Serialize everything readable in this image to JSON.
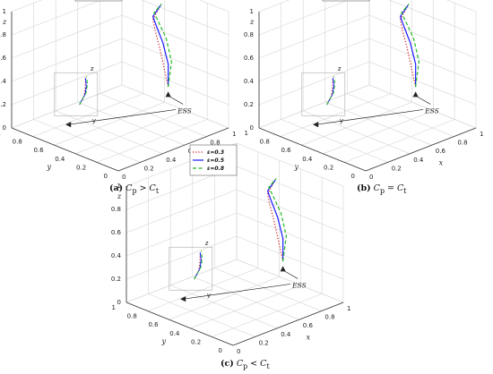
{
  "chart_data": [
    {
      "type": "line3d",
      "caption_label": "(a)",
      "caption_condition": "C_p > C_t",
      "xlabel": "x",
      "ylabel": "y",
      "zlabel": "z",
      "xlim": [
        0,
        1
      ],
      "ylim": [
        0,
        1
      ],
      "zlim": [
        0,
        1
      ],
      "xticks": [
        "0",
        "0.2",
        "0.4",
        "0.6",
        "0.8",
        "1"
      ],
      "yticks": [
        "0",
        "0.2",
        "0.4",
        "0.6",
        "0.8",
        "1"
      ],
      "zticks": [
        "0",
        "0.2",
        "0.4",
        "0.6",
        "0.8",
        "1"
      ],
      "inset_zlabel": "z",
      "inset_ylabel": "y",
      "annotation": "ESS",
      "grid": true,
      "legend_position": "top-right",
      "series": [
        {
          "name": "ε=0.3",
          "color": "#d81b1b",
          "style": "dotted"
        },
        {
          "name": "ε=0.5",
          "color": "#1a1aff",
          "style": "solid"
        },
        {
          "name": "ε=0.8",
          "color": "#22bb22",
          "style": "dashed"
        }
      ]
    },
    {
      "type": "line3d",
      "caption_label": "(b)",
      "caption_condition": "C_p = C_t",
      "xlabel": "x",
      "ylabel": "y",
      "zlabel": "z",
      "xlim": [
        0,
        1
      ],
      "ylim": [
        0,
        1
      ],
      "zlim": [
        0,
        1
      ],
      "xticks": [
        "0",
        "0.2",
        "0.4",
        "0.6",
        "0.8",
        "1"
      ],
      "yticks": [
        "0",
        "0.2",
        "0.4",
        "0.6",
        "0.8",
        "1"
      ],
      "zticks": [
        "0",
        "0.2",
        "0.4",
        "0.6",
        "0.8",
        "1"
      ],
      "inset_zlabel": "z",
      "inset_ylabel": "y",
      "annotation": "ESS",
      "grid": true,
      "legend_position": "top-right",
      "series": [
        {
          "name": "ε=0.3",
          "color": "#d81b1b",
          "style": "dotted"
        },
        {
          "name": "ε=0.5",
          "color": "#1a1aff",
          "style": "solid"
        },
        {
          "name": "ε=0.8",
          "color": "#22bb22",
          "style": "dashed"
        }
      ]
    },
    {
      "type": "line3d",
      "caption_label": "(c)",
      "caption_condition": "C_p < C_t",
      "xlabel": "x",
      "ylabel": "y",
      "zlabel": "z",
      "xlim": [
        0,
        1
      ],
      "ylim": [
        0,
        1
      ],
      "zlim": [
        0,
        1
      ],
      "xticks": [
        "0",
        "0.2",
        "0.4",
        "0.6",
        "0.8",
        "1"
      ],
      "yticks": [
        "0",
        "0.2",
        "0.4",
        "0.6",
        "0.8",
        "1"
      ],
      "zticks": [
        "0",
        "0.2",
        "0.4",
        "0.6",
        "0.8",
        "1"
      ],
      "inset_zlabel": "z",
      "inset_ylabel": "y",
      "annotation": "ESS",
      "grid": true,
      "legend_position": "top-right",
      "series": [
        {
          "name": "ε=0.3",
          "color": "#d81b1b",
          "style": "dotted"
        },
        {
          "name": "ε=0.5",
          "color": "#1a1aff",
          "style": "solid"
        },
        {
          "name": "ε=0.8",
          "color": "#22bb22",
          "style": "dashed"
        }
      ]
    }
  ]
}
